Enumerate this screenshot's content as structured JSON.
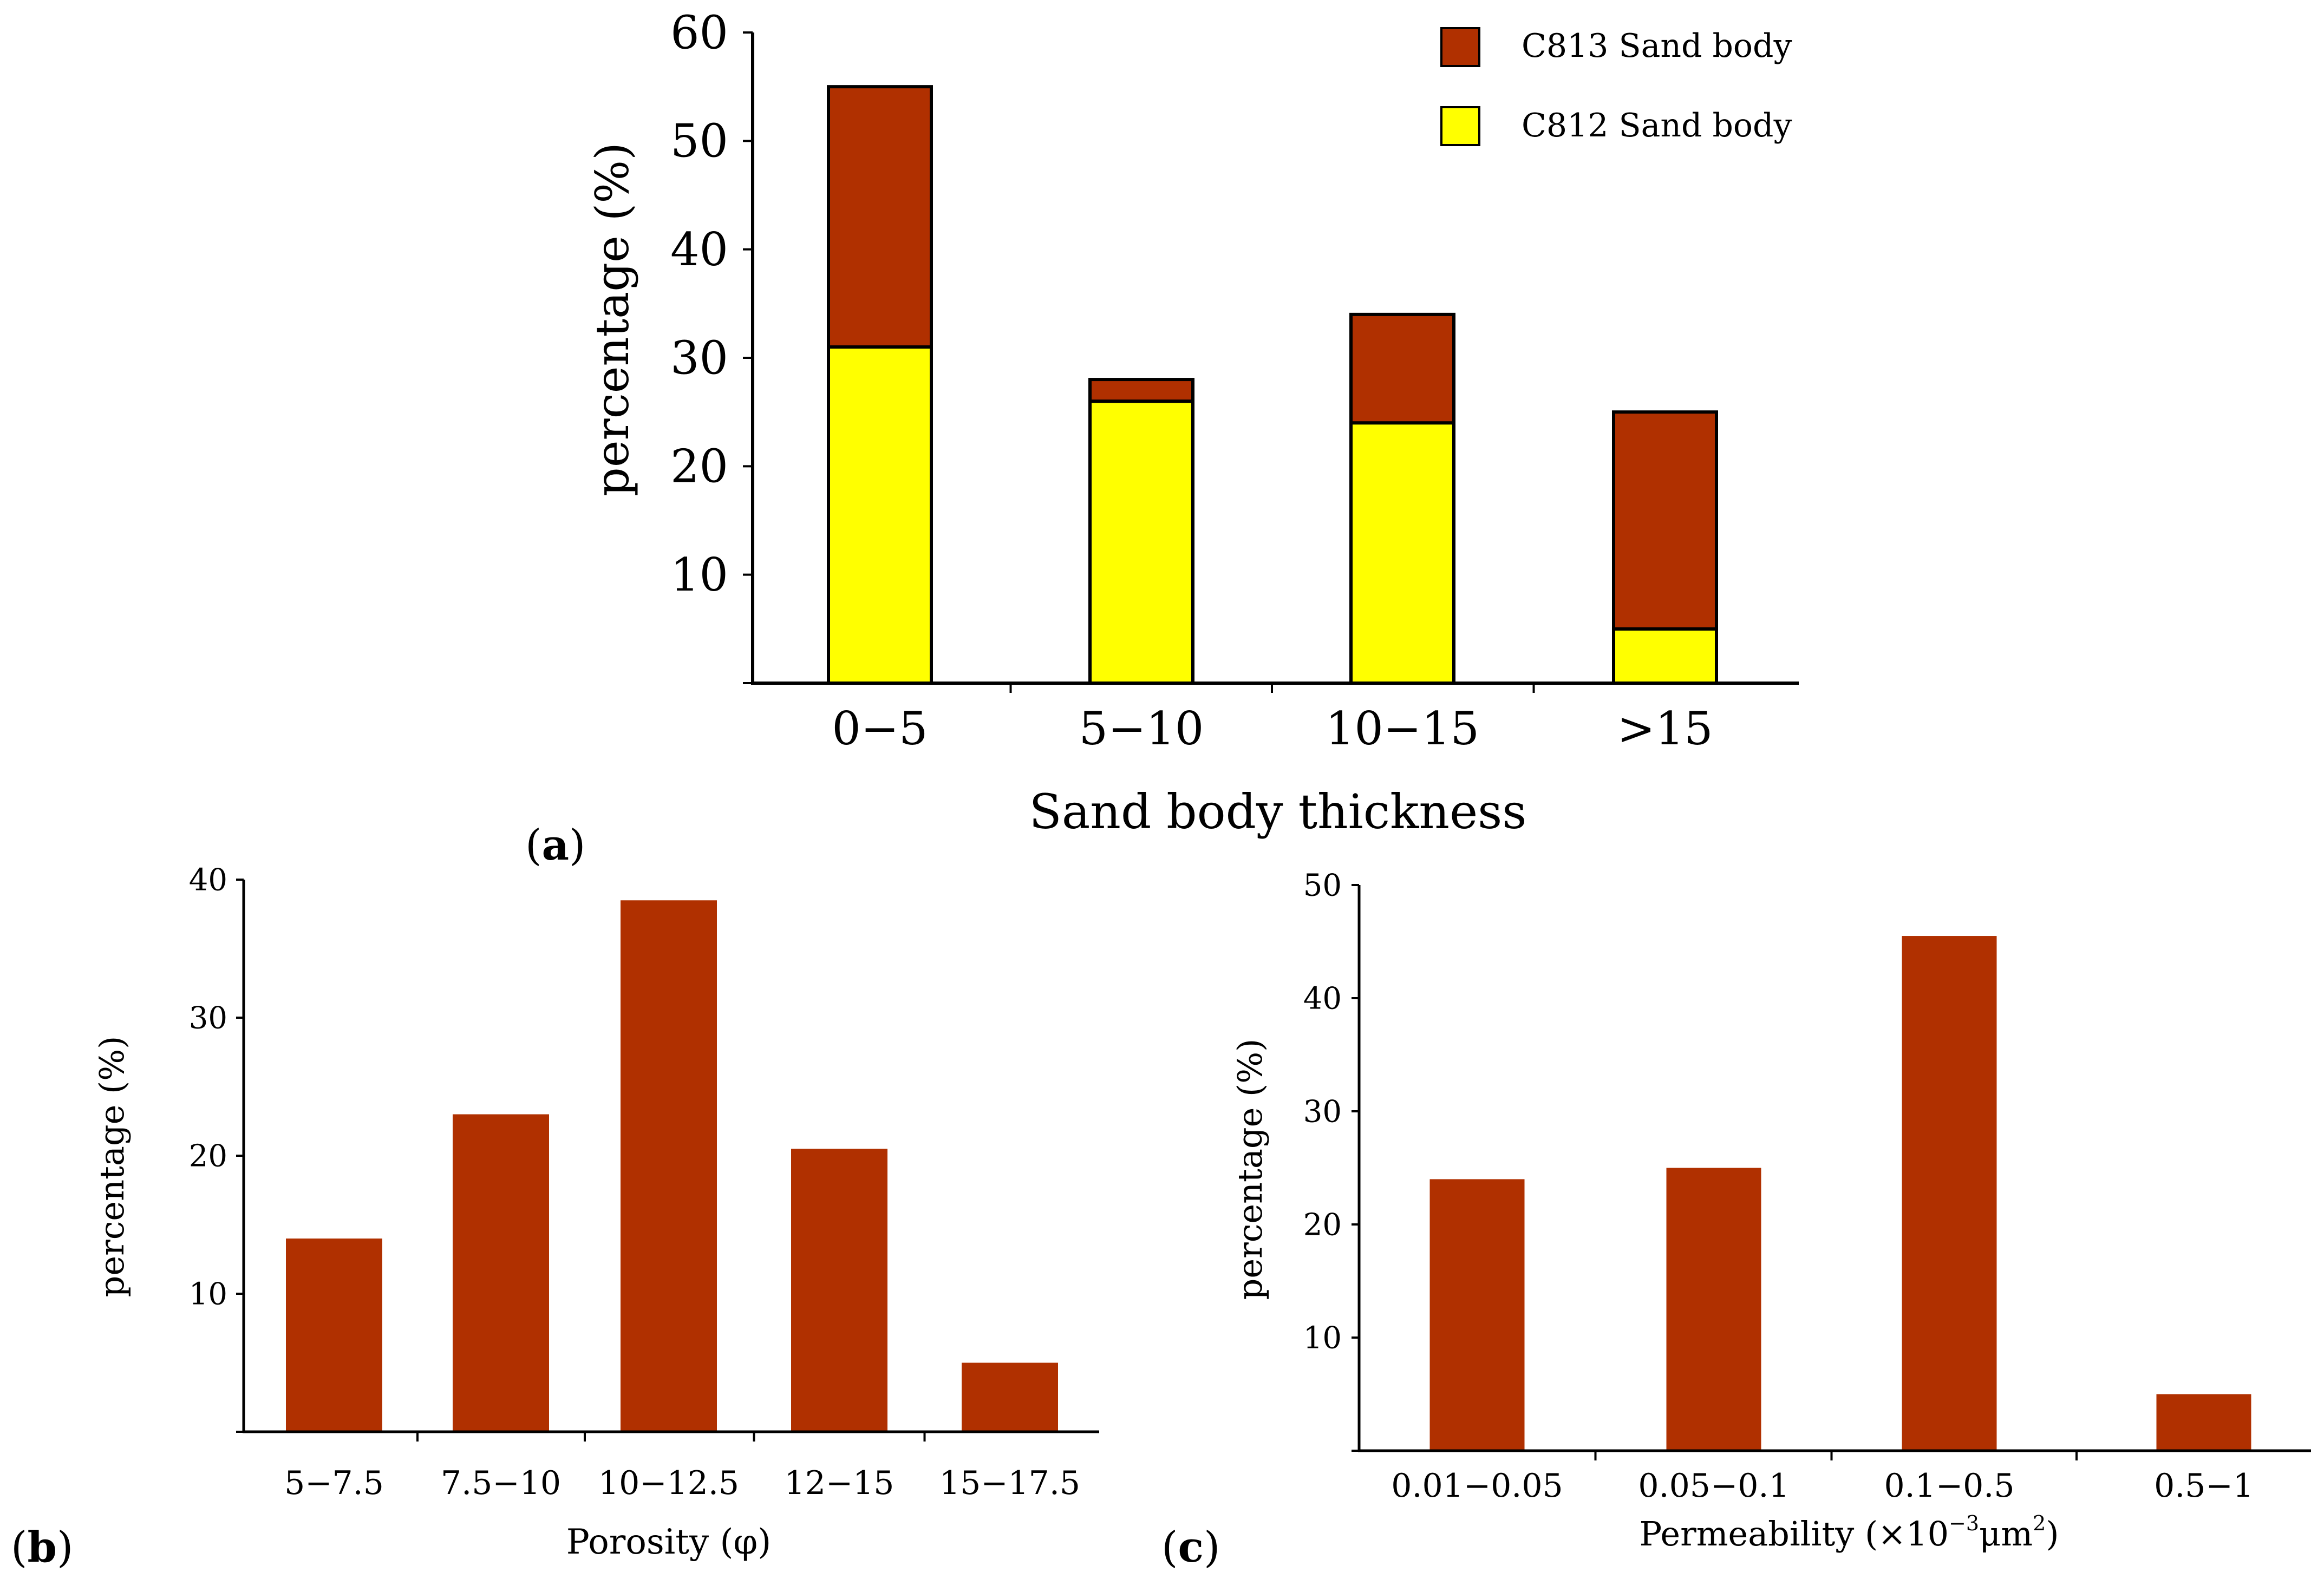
{
  "colors": {
    "bar": "#b03000",
    "c812": "#ffff00",
    "outline": "#000000",
    "axis": "#000000"
  },
  "chart_data": [
    {
      "id": "a",
      "panel_label": "a",
      "type": "bar",
      "stacked": true,
      "title": "",
      "xlabel": "Sand body thickness",
      "ylabel": "percentage (%)",
      "categories": [
        "0−5",
        "5−10",
        "10−15",
        ">15"
      ],
      "yticks": [
        "10",
        "20",
        "30",
        "40",
        "50",
        "60"
      ],
      "ylim": [
        0,
        60
      ],
      "legend_position": "top-right",
      "series": [
        {
          "name": "C812 Sand body",
          "color": "#ffff00",
          "values": [
            31,
            26,
            24,
            5
          ]
        },
        {
          "name": "C813 Sand body",
          "color": "#b03000",
          "values": [
            24,
            2,
            10,
            20
          ]
        }
      ],
      "legend_order": [
        "C813 Sand body",
        "C812 Sand body"
      ]
    },
    {
      "id": "b",
      "panel_label": "b",
      "type": "bar",
      "title": "",
      "xlabel": "Porosity (φ)",
      "ylabel": "percentage (%)",
      "categories": [
        "5−7.5",
        "7.5−10",
        "10−12.5",
        "12−15",
        "15−17.5"
      ],
      "values": [
        14,
        23,
        38.5,
        20.5,
        5
      ],
      "yticks": [
        "10",
        "20",
        "30",
        "40"
      ],
      "ylim": [
        0,
        40
      ]
    },
    {
      "id": "c",
      "panel_label": "c",
      "type": "bar",
      "title": "",
      "xlabel": "Permeability (×10",
      "xlabel_sup1": "−3",
      "xlabel_mid": "μm",
      "xlabel_sup2": "2",
      "xlabel_end": ")",
      "ylabel": "percentage (%)",
      "categories": [
        "0.01−0.05",
        "0.05−0.1",
        "0.1−0.5",
        "0.5−1"
      ],
      "values": [
        24,
        25,
        45.5,
        5
      ],
      "yticks": [
        "10",
        "20",
        "30",
        "40",
        "50"
      ],
      "ylim": [
        0,
        50
      ]
    }
  ]
}
